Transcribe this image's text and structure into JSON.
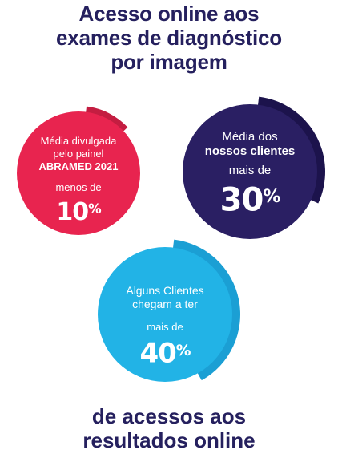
{
  "heading": {
    "line1": "Acesso online aos",
    "line2": "exames de diagnóstico",
    "line3": "por imagem"
  },
  "circles": {
    "abramed": {
      "line1": "Média divulgada",
      "line2": "pelo painel",
      "line3": "ABRAMED 2021",
      "prefix": "menos de",
      "value": "10",
      "unit": "%",
      "color": "#e8244f",
      "accent": "#c41d41",
      "progress": 0.1
    },
    "clientes": {
      "line1": "Média dos",
      "line2": "nossos clientes",
      "prefix": "mais de",
      "value": "30",
      "unit": "%",
      "color": "#2a1f63",
      "accent": "#1c134c",
      "progress": 0.3
    },
    "alguns": {
      "line1": "Alguns Clientes",
      "line2": "chegam a ter",
      "prefix": "mais de",
      "value": "40",
      "unit": "%",
      "color": "#22b3e6",
      "accent": "#1b9fd4",
      "progress": 0.4
    }
  },
  "footer": {
    "line1": "de acessos aos",
    "line2": "resultados online"
  }
}
